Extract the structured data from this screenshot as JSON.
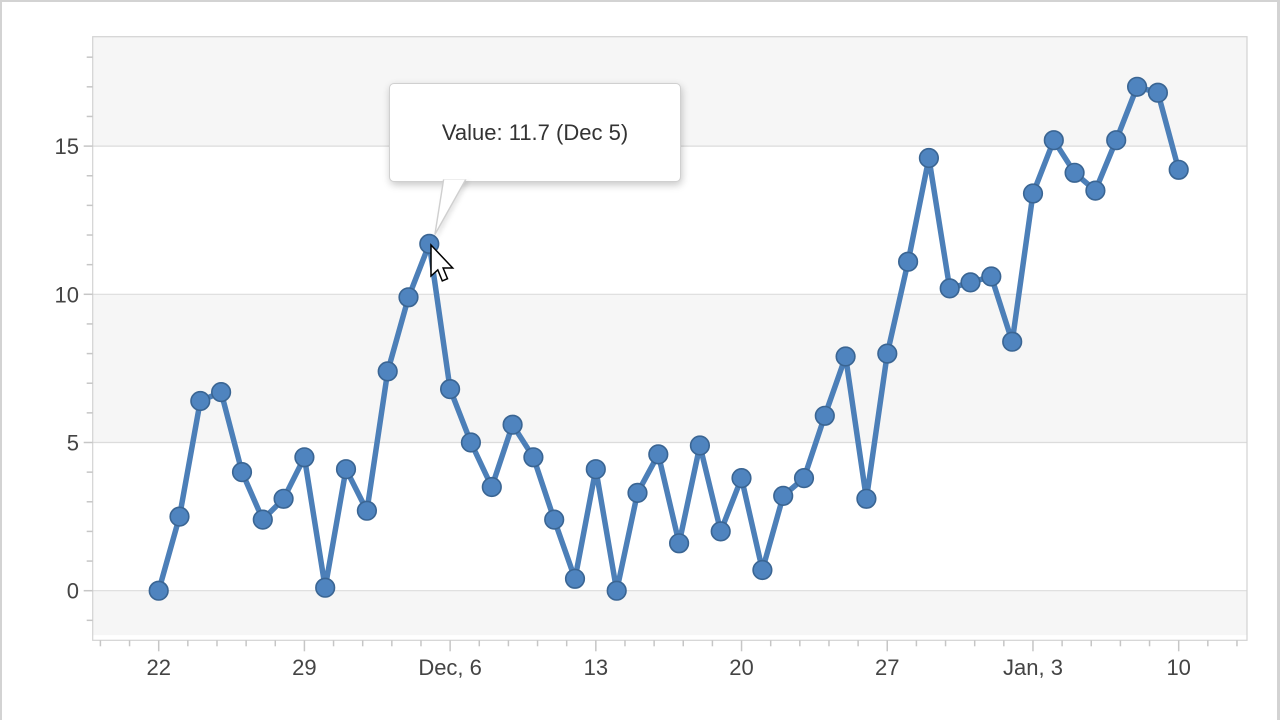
{
  "tooltip": {
    "text": "Value: 11.7 (Dec 5)"
  },
  "chart_data": {
    "type": "line",
    "title": "",
    "xlabel": "",
    "ylabel": "",
    "dates": [
      "Nov 22",
      "Nov 23",
      "Nov 24",
      "Nov 25",
      "Nov 26",
      "Nov 27",
      "Nov 28",
      "Nov 29",
      "Nov 30",
      "Dec 1",
      "Dec 2",
      "Dec 3",
      "Dec 4",
      "Dec 5",
      "Dec 6",
      "Dec 7",
      "Dec 8",
      "Dec 9",
      "Dec 10",
      "Dec 11",
      "Dec 12",
      "Dec 13",
      "Dec 14",
      "Dec 15",
      "Dec 16",
      "Dec 17",
      "Dec 18",
      "Dec 19",
      "Dec 20",
      "Dec 21",
      "Dec 22",
      "Dec 23",
      "Dec 24",
      "Dec 25",
      "Dec 26",
      "Dec 27",
      "Dec 28",
      "Dec 29",
      "Dec 30",
      "Dec 31",
      "Jan 1",
      "Jan 2",
      "Jan 3",
      "Jan 4",
      "Jan 5",
      "Jan 6",
      "Jan 7",
      "Jan 8",
      "Jan 9",
      "Jan 10"
    ],
    "series": [
      {
        "name": "Value",
        "values": [
          0.0,
          2.5,
          6.4,
          6.7,
          4.0,
          2.4,
          3.1,
          4.5,
          0.1,
          4.1,
          2.7,
          7.4,
          9.9,
          11.7,
          6.8,
          5.0,
          3.5,
          5.6,
          4.5,
          2.4,
          0.4,
          4.1,
          0.0,
          3.3,
          4.6,
          1.6,
          4.9,
          2.0,
          3.8,
          0.7,
          3.2,
          3.8,
          5.9,
          7.9,
          3.1,
          8.0,
          11.1,
          14.6,
          10.2,
          10.4,
          10.6,
          8.4,
          13.4,
          15.2,
          14.1,
          13.5,
          15.2,
          17.0,
          16.8,
          14.2
        ]
      }
    ],
    "highlighted_point": {
      "date": "Dec 5",
      "value": 11.7,
      "day_index": 13
    },
    "x_axis": {
      "major_tick_labels": [
        "22",
        "29",
        "Dec, 6",
        "13",
        "20",
        "27",
        "Jan, 3",
        "10"
      ],
      "major_tick_day_indices": [
        0,
        7,
        14,
        21,
        28,
        35,
        42,
        49
      ],
      "minor_ticks_per_major_interval": 4
    },
    "y_axis": {
      "tick_labels": [
        "0",
        "5",
        "10",
        "15"
      ],
      "tick_values": [
        0,
        5,
        10,
        15
      ],
      "minor_tick_step": 1,
      "ylim": [
        -1.5,
        18.7
      ]
    },
    "grid": true,
    "alternating_bands": true,
    "legend": "none"
  },
  "colors": {
    "line": "#4c7fb8",
    "marker_fill": "#4f84bf",
    "marker_stroke": "#3a6593",
    "band": "#f6f6f6",
    "gridline": "#dcdcdc",
    "axis_line": "#d3d3d3",
    "tick": "#c6c6c6",
    "axis_text": "#444444",
    "tooltip_text": "#333333"
  }
}
